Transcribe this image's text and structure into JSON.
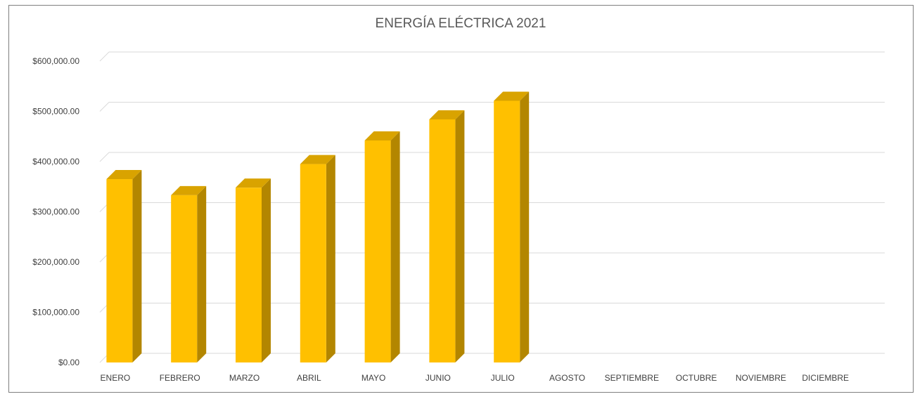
{
  "chart_data": {
    "type": "bar",
    "title": "ENERGÍA ELÉCTRICA 2021",
    "categories": [
      "ENERO",
      "FEBRERO",
      "MARZO",
      "ABRIL",
      "MAYO",
      "JUNIO",
      "JULIO",
      "AGOSTO",
      "SEPTIEMBRE",
      "OCTUBRE",
      "NOVIEMBRE",
      "DICIEMBRE"
    ],
    "values": [
      365000,
      333000,
      348000,
      395000,
      442000,
      484000,
      521000,
      null,
      null,
      null,
      null,
      null
    ],
    "y_ticks": [
      "$0.00",
      "$100,000.00",
      "$200,000.00",
      "$300,000.00",
      "$400,000.00",
      "$500,000.00",
      "$600,000.00"
    ],
    "ylim": [
      0,
      600000
    ],
    "xlabel": "",
    "ylabel": "",
    "grid": true,
    "bar_style": "3d-column",
    "colors": {
      "bar_front": "#FFC000",
      "bar_side": "#B38600",
      "bar_top": "#D9A300",
      "gridline": "#D9D9D9",
      "frame": "#7F7F7F"
    }
  }
}
